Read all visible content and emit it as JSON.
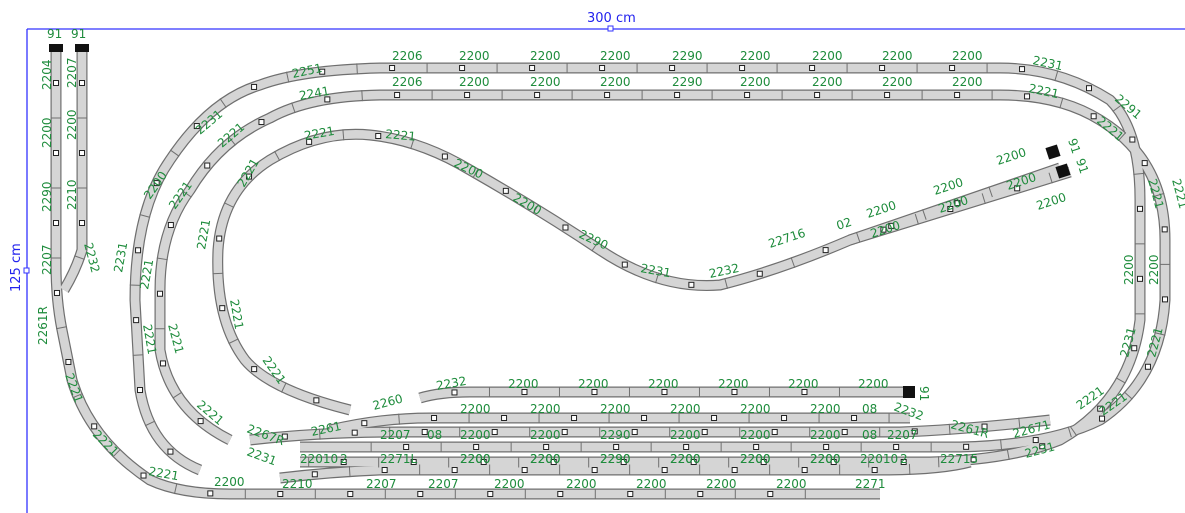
{
  "dimensions": {
    "width_label": "300 cm",
    "height_label": "125 cm"
  },
  "colors": {
    "track_fill": "#d5d5d5",
    "track_edge": "#6f6f6f",
    "label_green": "#1e8c3c",
    "dimension_blue": "#2222ee",
    "buffer_stop": "#111111"
  },
  "track_labels": [
    "91",
    "91",
    "2204",
    "2207",
    "2200",
    "2200",
    "2290",
    "2210",
    "2207",
    "2232",
    "2261R",
    "2251",
    "2206",
    "2200",
    "2200",
    "2200",
    "2290",
    "2200",
    "2200",
    "2200",
    "2200",
    "2231",
    "2241",
    "2206",
    "2200",
    "2200",
    "2200",
    "2290",
    "2200",
    "2200",
    "2200",
    "2200",
    "2221",
    "2231",
    "2221",
    "2291",
    "2221",
    "2221",
    "2221",
    "2200",
    "2200",
    "2231",
    "2221",
    "2221",
    "2221",
    "2221",
    "2200",
    "2200",
    "2290",
    "2231",
    "2232",
    "22716",
    "02",
    "2200",
    "2200",
    "2200",
    "2200",
    "2200",
    "2200",
    "2200",
    "91",
    "91",
    "2231",
    "2221",
    "2200",
    "2221",
    "2221",
    "2221",
    "2221",
    "2221",
    "2221",
    "2221",
    "2221",
    "2232",
    "2200",
    "2200",
    "2200",
    "2200",
    "2200",
    "2200",
    "91",
    "2260",
    "2200",
    "2200",
    "2200",
    "2200",
    "2200",
    "2200",
    "08",
    "2232",
    "2207",
    "08",
    "2200",
    "2200",
    "2290",
    "2200",
    "2200",
    "2200",
    "08",
    "2207",
    "2261",
    "2267R",
    "2231",
    "22010",
    "2",
    "2200",
    "2200",
    "2290",
    "2200",
    "2200",
    "2200",
    "22010",
    "2",
    "22715",
    "2271L",
    "2200",
    "2200",
    "2290",
    "2200",
    "2200",
    "2200",
    "2210",
    "2207",
    "2207",
    "2200",
    "2200",
    "2200",
    "2200",
    "2200",
    "2271",
    "2261R",
    "22671",
    "2231",
    "2221",
    "2221",
    "2221",
    "2221",
    "2200"
  ]
}
